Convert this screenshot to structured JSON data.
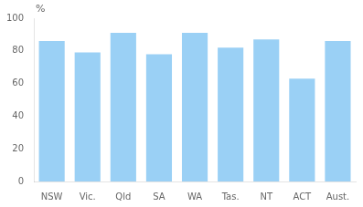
{
  "chart_data": {
    "type": "bar",
    "categories": [
      "NSW",
      "Vic.",
      "Qld",
      "SA",
      "WA",
      "Tas.",
      "NT",
      "ACT",
      "Aust."
    ],
    "values": [
      86,
      79,
      91,
      78,
      91,
      82,
      87,
      63,
      86
    ],
    "ylabel": "%",
    "ylim": [
      0,
      100
    ],
    "yticks": [
      0,
      20,
      40,
      60,
      80,
      100
    ],
    "grid": false
  }
}
